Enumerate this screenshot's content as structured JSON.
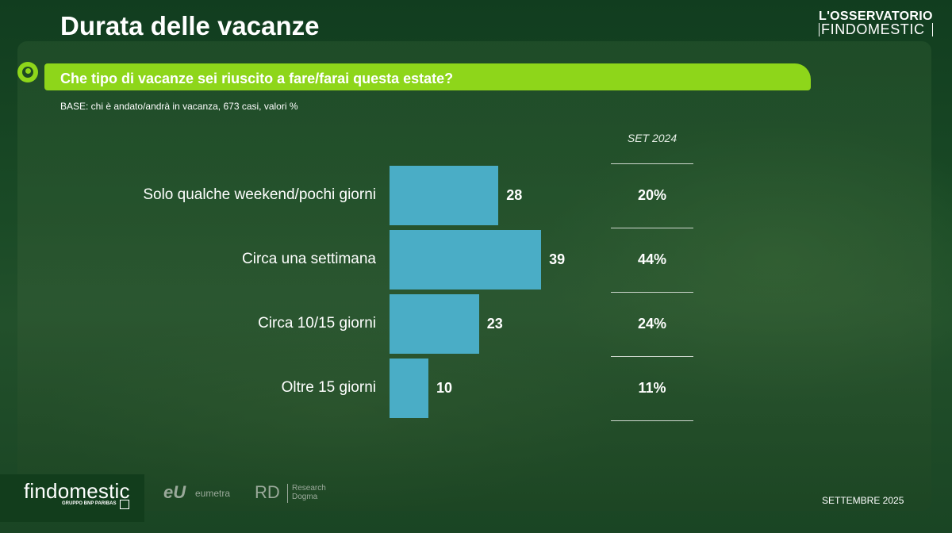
{
  "header": {
    "title": "Durata delle vacanze",
    "brand_line1": "L'OSSERVATORIO",
    "brand_line2": "FINDOMESTIC"
  },
  "question": "Che tipo di vacanze sei riuscito a fare/farai questa estate?",
  "base_note": "BASE: chi è andato/andrà in vacanza, 673 casi, valori %",
  "chart_data": {
    "type": "bar",
    "orientation": "horizontal",
    "categories": [
      "Solo qualche weekend/pochi giorni",
      "Circa una settimana",
      "Circa 10/15 giorni",
      "Oltre 15 giorni"
    ],
    "values": [
      28,
      39,
      23,
      10
    ],
    "value_labels": [
      "28",
      "39",
      "23",
      "10"
    ],
    "comparison_header": "SET 2024",
    "comparison_values": [
      "20%",
      "44%",
      "24%",
      "11%"
    ],
    "xlim": [
      0,
      60
    ],
    "bar_color": "#4aadc6"
  },
  "footer": {
    "logo_text": "findomestic",
    "logo_sub": "GRUPPO BNP PARIBAS",
    "partner1_mark": "eU",
    "partner1_name": "eumetra",
    "partner2_mark": "RD",
    "partner2_name": "Research Dogma",
    "date": "SETTEMBRE 2025"
  },
  "colors": {
    "accent_green": "#8ed61a",
    "background": "#0f3a1d"
  }
}
